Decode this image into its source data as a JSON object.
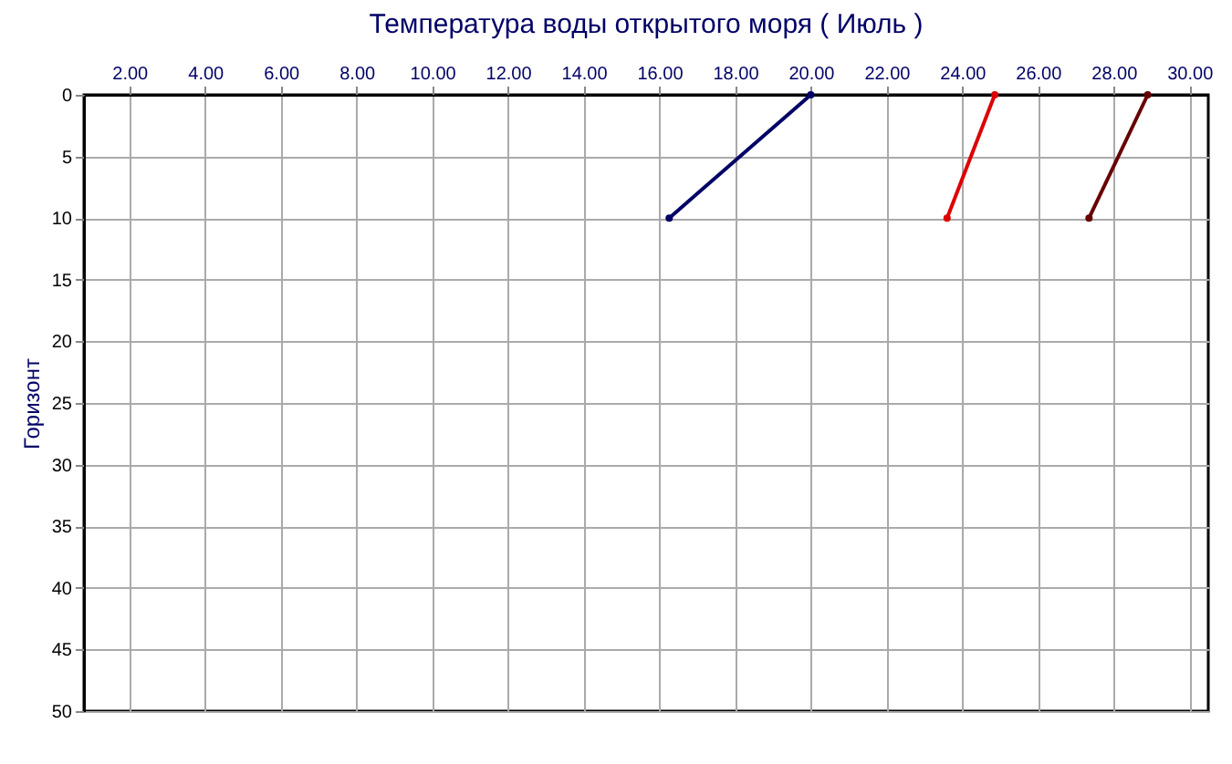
{
  "chart_data": {
    "type": "line",
    "title": "Температура воды открытого моря     ( Июль )",
    "ylabel": "Горизонт",
    "series": [
      {
        "x": [
          20.0,
          16.26
        ],
        "values": [
          0,
          10
        ],
        "color": "#000066"
      },
      {
        "x": [
          24.86,
          23.6
        ],
        "values": [
          0,
          10
        ],
        "color": "#dd0000"
      },
      {
        "x": [
          28.9,
          27.35
        ],
        "values": [
          0,
          10
        ],
        "color": "#660000"
      }
    ],
    "xlim": [
      0.8,
      30.5
    ],
    "xticks": [
      {
        "value": 2,
        "label": "2.00"
      },
      {
        "value": 4,
        "label": "4.00"
      },
      {
        "value": 6,
        "label": "6.00"
      },
      {
        "value": 8,
        "label": "8.00"
      },
      {
        "value": 10,
        "label": "10.00"
      },
      {
        "value": 12,
        "label": "12.00"
      },
      {
        "value": 14,
        "label": "14.00"
      },
      {
        "value": 16,
        "label": "16.00"
      },
      {
        "value": 18,
        "label": "18.00"
      },
      {
        "value": 20,
        "label": "20.00"
      },
      {
        "value": 22,
        "label": "22.00"
      },
      {
        "value": 24,
        "label": "24.00"
      },
      {
        "value": 26,
        "label": "26.00"
      },
      {
        "value": 28,
        "label": "28.00"
      },
      {
        "value": 30,
        "label": "30.00"
      }
    ],
    "ylim": [
      50,
      0
    ],
    "yticks": [
      0,
      5,
      10,
      15,
      20,
      25,
      30,
      35,
      40,
      45,
      50
    ],
    "grid": true,
    "marker": "circle",
    "line_style": "solid"
  }
}
